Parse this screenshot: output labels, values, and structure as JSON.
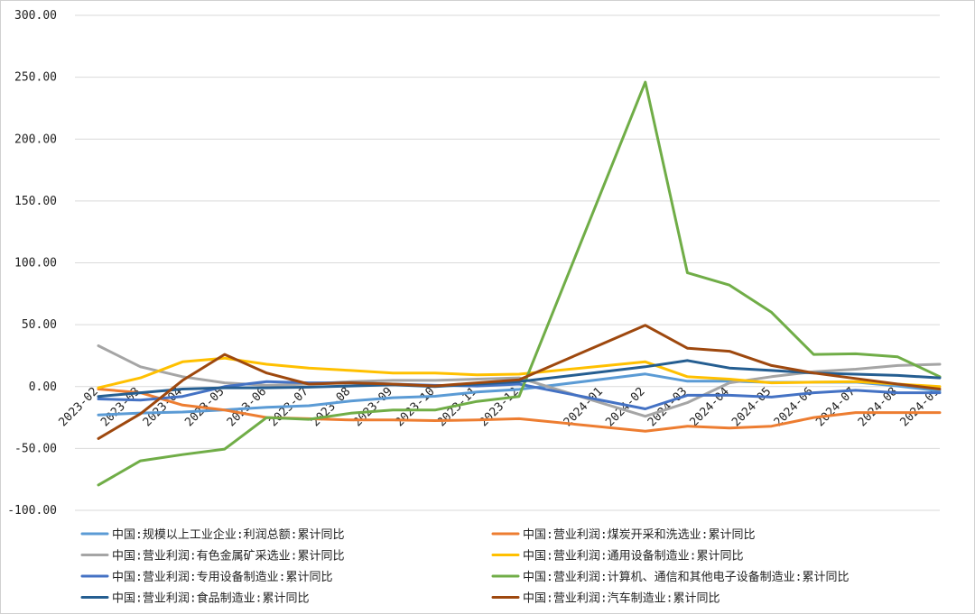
{
  "chart_data": {
    "type": "line",
    "ylim": [
      -100,
      300
    ],
    "yticks": [
      "300.00",
      "250.00",
      "200.00",
      "150.00",
      "100.00",
      "50.00",
      "0.00",
      "-50.00",
      "-100.00"
    ],
    "ytick_values": [
      300,
      250,
      200,
      150,
      100,
      50,
      0,
      -50,
      -100
    ],
    "grid": true,
    "legend_position": "bottom",
    "categories": [
      "2023-02",
      "2023-03",
      "2023-04",
      "2023-05",
      "2023-06",
      "2023-07",
      "2023-08",
      "2023-09",
      "2023-10",
      "2023-11",
      "2023-12",
      "2024-01",
      "2024-02",
      "2024-03",
      "2024-04",
      "2024-05",
      "2024-06",
      "2024-07",
      "2024-08",
      "2024-09"
    ],
    "category_gaps": [
      1,
      1,
      1,
      1,
      1,
      1,
      1,
      1,
      1,
      1,
      2,
      1,
      1,
      1,
      1,
      1,
      1,
      1,
      1
    ],
    "series": [
      {
        "name": "中国:规模以上工业企业:利润总额:累计同比",
        "color": "#5B9BD5",
        "values": [
          -22.9,
          -21.4,
          -20.6,
          -18.8,
          -16.8,
          -15.5,
          -11.7,
          -9.0,
          -7.8,
          -4.4,
          -2.3,
          null,
          10.2,
          4.3,
          4.3,
          3.4,
          3.5,
          3.6,
          0.5,
          -3.5
        ]
      },
      {
        "name": "中国:营业利润:煤炭开采和洗选业:累计同比",
        "color": "#ED7D31",
        "values": [
          -2.0,
          -5.0,
          -15.0,
          -19.0,
          -25.0,
          -26.0,
          -27.0,
          -27.0,
          -27.5,
          -27.0,
          -26.0,
          null,
          -36.0,
          -32.0,
          -33.5,
          -32.0,
          -25.0,
          -21.0,
          -21.0,
          -21.0
        ]
      },
      {
        "name": "中国:营业利润:有色金属矿采选业:累计同比",
        "color": "#A5A5A5",
        "values": [
          33.0,
          16.0,
          8.0,
          3.0,
          1.0,
          2.0,
          4.0,
          5.0,
          5.0,
          6.0,
          7.0,
          null,
          -24.0,
          -13.0,
          3.0,
          8.0,
          12.0,
          14.0,
          17.0,
          18.0
        ]
      },
      {
        "name": "中国:营业利润:通用设备制造业:累计同比",
        "color": "#FFC000",
        "values": [
          -1.0,
          7.0,
          20.0,
          23.0,
          18.0,
          15.0,
          13.0,
          11.0,
          11.0,
          9.5,
          10.0,
          null,
          20.0,
          8.0,
          6.0,
          3.0,
          3.5,
          4.0,
          2.0,
          0.0
        ]
      },
      {
        "name": "中国:营业利润:专用设备制造业:累计同比",
        "color": "#4472C4",
        "values": [
          -10.0,
          -11.0,
          -8.0,
          0.0,
          4.0,
          3.0,
          3.0,
          2.0,
          1.0,
          0.5,
          2.0,
          null,
          -18.0,
          -7.0,
          -7.0,
          -8.5,
          -5.0,
          -3.0,
          -5.0,
          -5.0
        ]
      },
      {
        "name": "中国:营业利润:计算机、通信和其他电子设备制造业:累计同比",
        "color": "#70AD47",
        "values": [
          -79.5,
          -60.0,
          -55.0,
          -50.5,
          -25.0,
          -26.5,
          -21.5,
          -19.0,
          -19.0,
          -12.0,
          -8.0,
          null,
          246.0,
          92.0,
          82.0,
          60.0,
          26.0,
          26.5,
          24.0,
          8.0
        ]
      },
      {
        "name": "中国:营业利润:食品制造业:累计同比",
        "color": "#255E91",
        "values": [
          -8.0,
          -5.0,
          -2.0,
          -1.0,
          -1.0,
          -0.5,
          0.5,
          1.5,
          0.0,
          2.0,
          4.0,
          null,
          16.0,
          21.0,
          15.0,
          13.0,
          11.0,
          10.0,
          9.0,
          7.0
        ]
      },
      {
        "name": "中国:营业利润:汽车制造业:累计同比",
        "color": "#9E480E",
        "values": [
          -42.0,
          -22.0,
          5.0,
          26.0,
          11.0,
          2.0,
          3.0,
          2.0,
          0.5,
          3.0,
          5.5,
          null,
          49.5,
          31.0,
          28.5,
          17.0,
          11.0,
          6.5,
          2.0,
          -2.0
        ]
      }
    ]
  }
}
